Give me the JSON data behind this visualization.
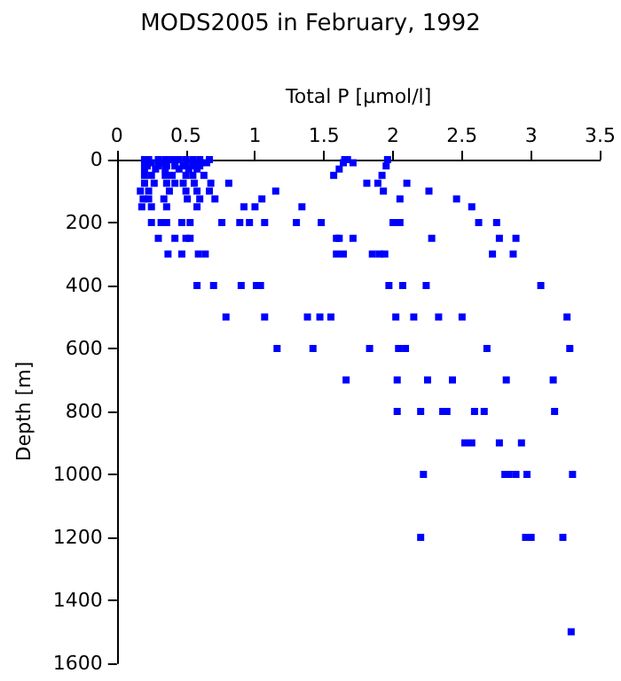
{
  "chart_data": {
    "type": "scatter",
    "title": "MODS2005 in February, 1992",
    "xlabel": "Total P [µmol/l]",
    "ylabel": "Depth [m]",
    "series": [
      {
        "color": "#0000ff",
        "x": [
          0.2,
          0.23,
          0.3,
          0.35,
          0.4,
          0.45,
          0.5,
          0.55,
          0.6,
          0.67,
          1.65,
          1.67,
          1.96,
          0.2,
          0.25,
          0.32,
          0.42,
          0.5,
          0.55,
          0.6,
          0.65,
          1.64,
          1.71,
          0.22,
          0.3,
          0.36,
          0.42,
          0.48,
          0.55,
          0.6,
          1.95,
          0.2,
          0.28,
          0.35,
          0.45,
          0.52,
          0.58,
          1.61,
          0.2,
          0.25,
          0.35,
          0.4,
          0.5,
          0.55,
          0.63,
          1.57,
          1.92,
          0.2,
          0.27,
          0.36,
          0.42,
          0.48,
          0.56,
          0.68,
          0.81,
          1.81,
          1.89,
          2.1,
          0.17,
          0.23,
          0.38,
          0.5,
          0.58,
          0.67,
          1.15,
          1.93,
          2.26,
          0.19,
          0.23,
          0.34,
          0.51,
          0.6,
          0.71,
          1.05,
          2.05,
          2.46,
          0.18,
          0.25,
          0.36,
          0.58,
          0.92,
          1,
          1.34,
          2.57,
          0.25,
          0.32,
          0.36,
          0.47,
          0.53,
          0.76,
          0.89,
          0.96,
          1.07,
          1.3,
          1.48,
          2,
          2.05,
          2.62,
          2.75,
          0.3,
          0.42,
          0.5,
          0.53,
          1.59,
          1.61,
          1.71,
          2.28,
          2.77,
          2.89,
          0.37,
          0.47,
          0.59,
          0.64,
          1.59,
          1.64,
          1.85,
          1.9,
          1.94,
          2.72,
          2.87,
          0.58,
          0.7,
          0.9,
          1.01,
          1.04,
          1.97,
          2.07,
          2.24,
          3.07,
          0.79,
          1.07,
          1.38,
          1.47,
          1.55,
          2.02,
          2.15,
          2.33,
          2.5,
          3.26,
          1.16,
          1.42,
          1.83,
          2.04,
          2.09,
          2.68,
          3.28,
          1.66,
          2.03,
          2.25,
          2.43,
          2.82,
          3.16,
          2.03,
          2.2,
          2.36,
          2.39,
          2.59,
          2.66,
          3.17,
          2.52,
          2.57,
          2.77,
          2.93,
          2.22,
          2.81,
          2.84,
          2.89,
          2.97,
          3.3,
          2.2,
          2.96,
          3,
          3.23,
          3.29
        ],
        "values": [
          0,
          0,
          0,
          0,
          0,
          0,
          0,
          0,
          0,
          0,
          0,
          0,
          0,
          10,
          10,
          10,
          10,
          10,
          10,
          10,
          10,
          10,
          10,
          20,
          20,
          20,
          20,
          20,
          20,
          20,
          20,
          30,
          30,
          30,
          30,
          30,
          30,
          30,
          50,
          50,
          50,
          50,
          50,
          50,
          50,
          50,
          50,
          75,
          75,
          75,
          75,
          75,
          75,
          75,
          75,
          75,
          75,
          75,
          100,
          100,
          100,
          100,
          100,
          100,
          100,
          100,
          100,
          125,
          125,
          125,
          125,
          125,
          125,
          125,
          125,
          125,
          150,
          150,
          150,
          150,
          150,
          150,
          150,
          150,
          200,
          200,
          200,
          200,
          200,
          200,
          200,
          200,
          200,
          200,
          200,
          200,
          200,
          200,
          200,
          250,
          250,
          250,
          250,
          250,
          250,
          250,
          250,
          250,
          250,
          300,
          300,
          300,
          300,
          300,
          300,
          300,
          300,
          300,
          300,
          300,
          400,
          400,
          400,
          400,
          400,
          400,
          400,
          400,
          400,
          500,
          500,
          500,
          500,
          500,
          500,
          500,
          500,
          500,
          500,
          600,
          600,
          600,
          600,
          600,
          600,
          600,
          700,
          700,
          700,
          700,
          700,
          700,
          800,
          800,
          800,
          800,
          800,
          800,
          800,
          900,
          900,
          900,
          900,
          1000,
          1000,
          1000,
          1000,
          1000,
          1000,
          1200,
          1200,
          1200,
          1200,
          1500
        ]
      }
    ],
    "xlim": [
      0,
      3.5
    ],
    "xticks": [
      0,
      0.5,
      1,
      1.5,
      2,
      2.5,
      3,
      3.5
    ],
    "ylim": [
      1600,
      0
    ],
    "yticks": [
      0,
      200,
      400,
      600,
      800,
      1000,
      1200,
      1400,
      1600
    ],
    "marker": "square",
    "grid": false
  }
}
